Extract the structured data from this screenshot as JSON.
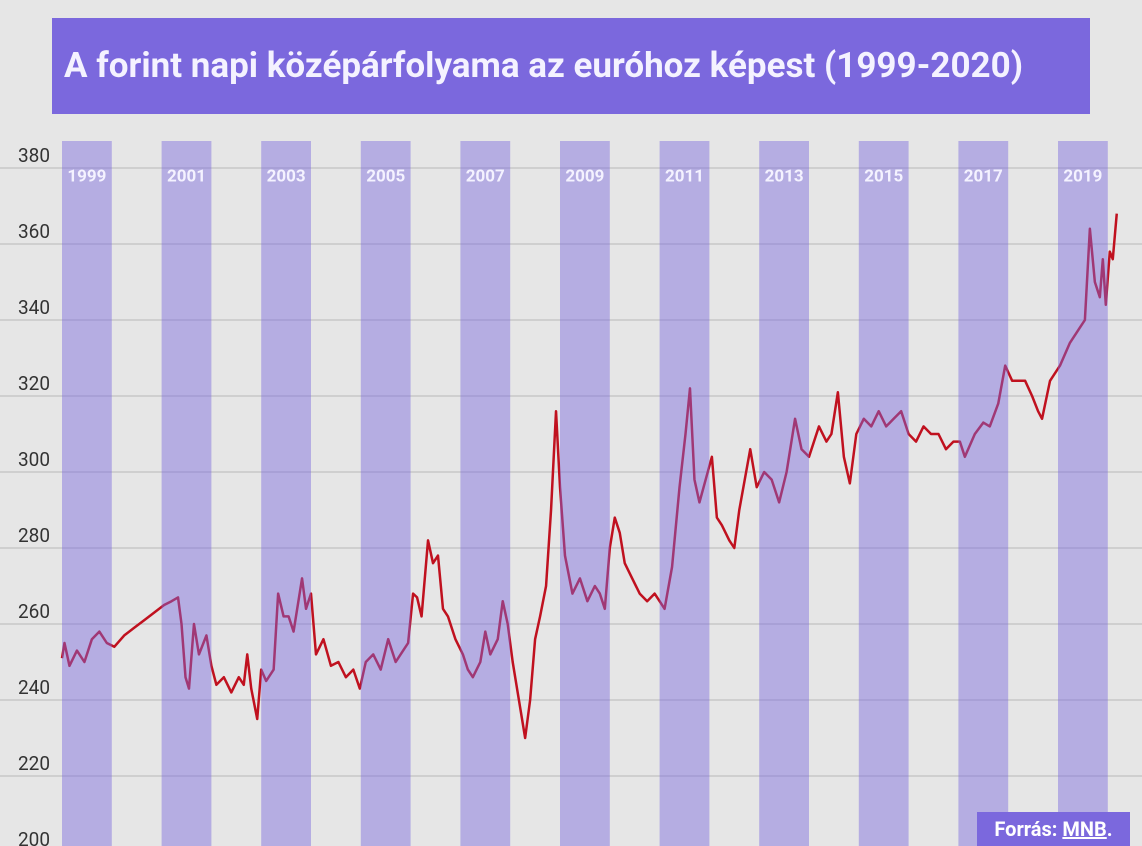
{
  "chart_data": {
    "type": "line",
    "title": "A forint napi középárfolyama az euróhoz képest (1999-2020)",
    "x": [
      1999.0,
      1999.05,
      1999.15,
      1999.3,
      1999.45,
      1999.6,
      1999.75,
      1999.9,
      2000.05,
      2000.25,
      2000.45,
      2000.65,
      2000.85,
      2001.05,
      2001.2,
      2001.33,
      2001.4,
      2001.48,
      2001.55,
      2001.65,
      2001.75,
      2001.9,
      2002.0,
      2002.1,
      2002.25,
      2002.4,
      2002.55,
      2002.65,
      2002.72,
      2002.8,
      2002.92,
      2003.0,
      2003.1,
      2003.25,
      2003.34,
      2003.45,
      2003.55,
      2003.65,
      2003.82,
      2003.9,
      2004.0,
      2004.1,
      2004.25,
      2004.4,
      2004.55,
      2004.7,
      2004.85,
      2004.98,
      2005.1,
      2005.25,
      2005.4,
      2005.55,
      2005.7,
      2005.85,
      2005.95,
      2006.05,
      2006.13,
      2006.22,
      2006.35,
      2006.45,
      2006.55,
      2006.65,
      2006.75,
      2006.9,
      2007.05,
      2007.15,
      2007.25,
      2007.4,
      2007.5,
      2007.6,
      2007.75,
      2007.85,
      2007.95,
      2008.05,
      2008.15,
      2008.3,
      2008.4,
      2008.5,
      2008.6,
      2008.72,
      2008.82,
      2008.92,
      2009.0,
      2009.1,
      2009.25,
      2009.4,
      2009.55,
      2009.7,
      2009.8,
      2009.9,
      2010.0,
      2010.1,
      2010.2,
      2010.3,
      2010.45,
      2010.6,
      2010.75,
      2010.9,
      2011.1,
      2011.25,
      2011.4,
      2011.52,
      2011.61,
      2011.7,
      2011.8,
      2012.05,
      2012.15,
      2012.25,
      2012.4,
      2012.5,
      2012.6,
      2012.82,
      2012.95,
      2013.1,
      2013.25,
      2013.4,
      2013.55,
      2013.72,
      2013.85,
      2014.0,
      2014.2,
      2014.35,
      2014.45,
      2014.58,
      2014.7,
      2014.82,
      2014.95,
      2015.1,
      2015.25,
      2015.4,
      2015.55,
      2015.7,
      2015.85,
      2016.0,
      2016.15,
      2016.3,
      2016.45,
      2016.6,
      2016.75,
      2016.9,
      2017.03,
      2017.13,
      2017.33,
      2017.5,
      2017.63,
      2017.8,
      2017.94,
      2018.08,
      2018.34,
      2018.48,
      2018.6,
      2018.68,
      2018.84,
      2019.04,
      2019.24,
      2019.44,
      2019.54,
      2019.64,
      2019.74,
      2019.84,
      2019.9,
      2019.96,
      2020.04,
      2020.1,
      2020.18
    ],
    "values": [
      251,
      255,
      249,
      253,
      250,
      256,
      258,
      255,
      254,
      257,
      259,
      261,
      263,
      265,
      266,
      267,
      260,
      246,
      243,
      260,
      252,
      257,
      249,
      244,
      246,
      242,
      246,
      244,
      252,
      243,
      235,
      248,
      245,
      248,
      268,
      262,
      262,
      258,
      272,
      264,
      268,
      252,
      256,
      249,
      250,
      246,
      248,
      243,
      250,
      252,
      248,
      256,
      250,
      253,
      255,
      268,
      267,
      262,
      282,
      276,
      278,
      264,
      262,
      256,
      252,
      248,
      246,
      250,
      258,
      252,
      256,
      266,
      260,
      250,
      242,
      230,
      240,
      256,
      262,
      270,
      290,
      316,
      296,
      278,
      268,
      272,
      266,
      270,
      268,
      264,
      280,
      288,
      284,
      276,
      272,
      268,
      266,
      268,
      264,
      275,
      296,
      310,
      322,
      298,
      292,
      304,
      288,
      286,
      282,
      280,
      290,
      306,
      296,
      300,
      298,
      292,
      300,
      314,
      306,
      304,
      312,
      308,
      310,
      321,
      304,
      297,
      310,
      314,
      312,
      316,
      312,
      314,
      316,
      310,
      308,
      312,
      310,
      310,
      306,
      308,
      308,
      304,
      310,
      313,
      312,
      318,
      328,
      324,
      324,
      320,
      316,
      314,
      324,
      328,
      334,
      338,
      340,
      364,
      350,
      346,
      356,
      344,
      358,
      356,
      368
    ],
    "color": "#c0111f",
    "xlim": [
      1999,
      2020.25
    ],
    "xticks": [
      1999,
      2001,
      2003,
      2005,
      2007,
      2009,
      2011,
      2013,
      2015,
      2017,
      2019
    ],
    "band_color": "#7b68dd",
    "ylim": [
      200,
      380
    ],
    "yticks": [
      200,
      220,
      240,
      260,
      280,
      300,
      320,
      340,
      360,
      380
    ],
    "grid": true,
    "source_label": "Forrás:",
    "source_link": "MNB",
    "source_end": "."
  }
}
